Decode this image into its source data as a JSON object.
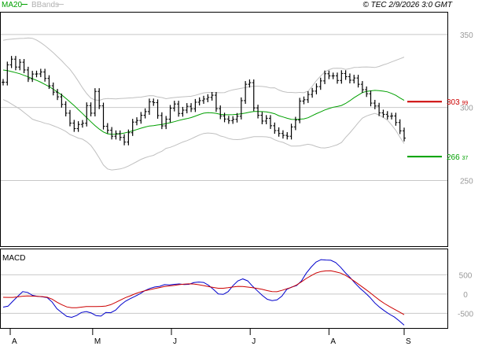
{
  "header": {
    "ma_legend": "MA20",
    "bb_legend": "BBands",
    "timestamp": "© TEC 2/9/2026 3:0 GMT"
  },
  "colors": {
    "background": "#ffffff",
    "price_bars": "#000000",
    "ma20": "#00a000",
    "bbands": "#c0c0c0",
    "macd_line": "#0000cc",
    "signal_line": "#cc0000",
    "resistance": "#cc0000",
    "support": "#00a000",
    "axis_text": "#999999"
  },
  "chart_data": [
    {
      "type": "ohlc",
      "title": "",
      "x_ticks": [
        "A",
        "M",
        "J",
        "J",
        "A",
        "S"
      ],
      "y_ticks": [
        250,
        300,
        350
      ],
      "ylim": [
        205,
        365
      ],
      "grid": true,
      "legend_placement": "top-left",
      "series": [
        {
          "name": "MA20",
          "values": [
            325.7,
            325.3,
            324.6,
            323.9,
            323.1,
            322.0,
            321.0,
            319.7,
            318.6,
            317.3,
            315.8,
            314.3,
            312.5,
            310.6,
            308.6,
            306.3,
            303.8,
            301.3,
            298.5,
            295.9,
            293.0,
            290.2,
            287.6,
            285.2,
            283.2,
            282.0,
            281.6,
            281.7,
            282.0,
            282.5,
            283.2,
            284.0,
            284.9,
            285.8,
            286.6,
            287.3,
            287.6,
            288.0,
            288.4,
            289.0,
            289.6,
            290.3,
            291.1,
            291.8,
            292.4,
            293.1,
            294.1,
            295.2,
            296.1,
            296.4,
            296.3,
            296.0,
            295.3,
            295.0,
            295.0,
            295.1,
            295.3,
            295.7,
            296.2,
            296.8,
            297.3,
            297.3,
            297.2,
            297.0,
            296.4,
            295.7,
            294.4,
            293.5,
            292.6,
            291.9,
            291.8,
            292.0,
            292.2,
            293.0,
            294.4,
            295.8,
            297.0,
            298.3,
            299.3,
            300.2,
            300.7,
            301.4,
            302.8,
            304.6,
            306.7,
            308.5,
            310.2,
            311.0,
            311.4,
            311.7,
            311.5,
            311.2,
            310.7,
            309.6,
            308.3,
            306.5,
            304.9
          ]
        },
        {
          "name": "BB upper",
          "values": [
            346.0,
            346.5,
            346.8,
            347.1,
            347.3,
            347.4,
            347.6,
            347.4,
            346.2,
            344.4,
            342.4,
            340.0,
            337.5,
            334.8,
            332.1,
            329.0,
            326.1,
            322.3,
            318.0,
            313.5,
            309.5,
            306.4,
            305.2,
            304.9,
            305.8,
            306.1,
            306.0,
            305.9,
            306.1,
            306.3,
            306.5,
            306.6,
            306.9,
            307.1,
            307.6,
            308.1,
            308.0,
            307.2,
            306.8,
            306.0,
            306.5,
            306.8,
            307.1,
            307.3,
            307.5,
            307.7,
            308.3,
            309.2,
            310.0,
            310.3,
            310.3,
            310.2,
            310.1,
            310.2,
            311.3,
            312.1,
            312.6,
            313.2,
            313.6,
            314.2,
            314.6,
            314.6,
            314.4,
            314.1,
            313.4,
            313.5,
            312.0,
            310.9,
            310.4,
            310.3,
            310.1,
            310.3,
            310.1,
            311.2,
            314.5,
            318.4,
            321.6,
            324.3,
            325.9,
            326.8,
            326.9,
            326.8,
            326.1,
            326.6,
            327.4,
            327.5,
            327.7,
            327.8,
            327.6,
            327.4,
            328.1,
            329.2,
            330.1,
            331.2,
            332.3,
            333.4,
            334.5
          ]
        },
        {
          "name": "BB lower",
          "values": [
            305.4,
            304.1,
            302.4,
            300.7,
            298.9,
            296.6,
            294.4,
            292.0,
            291.0,
            290.2,
            289.2,
            288.6,
            287.5,
            286.4,
            285.1,
            283.6,
            281.5,
            280.3,
            279.0,
            278.3,
            276.5,
            274.0,
            270.0,
            265.5,
            260.6,
            257.9,
            257.2,
            257.5,
            257.9,
            258.7,
            259.9,
            261.4,
            262.9,
            264.5,
            265.6,
            266.5,
            267.2,
            268.8,
            270.0,
            272.0,
            272.7,
            273.8,
            275.1,
            276.3,
            277.3,
            278.5,
            279.9,
            281.2,
            282.2,
            282.5,
            282.3,
            281.8,
            280.5,
            279.8,
            278.7,
            278.1,
            278.0,
            278.2,
            278.8,
            279.4,
            280.0,
            280.0,
            280.0,
            279.9,
            279.4,
            277.9,
            276.8,
            276.1,
            274.8,
            273.5,
            273.5,
            273.7,
            274.3,
            274.8,
            274.3,
            273.2,
            272.4,
            272.3,
            272.7,
            273.6,
            274.5,
            276.0,
            279.5,
            282.6,
            286.0,
            289.5,
            292.7,
            294.2,
            295.2,
            296.0,
            294.9,
            293.2,
            291.3,
            288.0,
            284.3,
            279.6,
            275.3
          ]
        },
        {
          "name": "Close",
          "values": [
            317.3,
            329.2,
            333.1,
            327.7,
            331.0,
            325.7,
            319.7,
            322.9,
            323.0,
            324.3,
            319.9,
            314.9,
            310.5,
            307.3,
            302.1,
            296.1,
            289.3,
            285.5,
            288.4,
            289.2,
            301.3,
            296.1,
            311.0,
            301.1,
            287.1,
            284.4,
            280.3,
            282.1,
            279.5,
            276.3,
            282.7,
            290.0,
            291.1,
            294.7,
            297.2,
            303.9,
            303.3,
            294.5,
            287.4,
            292.0,
            299.5,
            302.4,
            295.9,
            298.2,
            300.8,
            299.1,
            303.6,
            304.7,
            305.8,
            306.9,
            308.4,
            299.2,
            294.2,
            292.1,
            291.0,
            291.9,
            294.0,
            304.7,
            315.9,
            317.0,
            299.7,
            294.7,
            290.7,
            292.6,
            287.5,
            284.2,
            282.2,
            280.9,
            280.3,
            286.7,
            291.4,
            304.4,
            305.3,
            308.9,
            311.2,
            314.3,
            318.2,
            323.1,
            321.6,
            321.7,
            318.5,
            323.3,
            321.1,
            318.7,
            320.2,
            315.9,
            312.2,
            309.4,
            303.0,
            301.0,
            296.3,
            295.3,
            294.0,
            294.2,
            289.7,
            284.0,
            279.0
          ]
        }
      ],
      "annotations": [
        {
          "label": "303.99",
          "value": 303.99,
          "color": "#cc0000"
        },
        {
          "label": "266.37",
          "value": 266.37,
          "color": "#00a000"
        }
      ]
    },
    {
      "type": "line",
      "title": "MACD",
      "y_ticks": [
        500,
        0,
        -500
      ],
      "ylim": [
        -880,
        1160
      ],
      "grid": true,
      "series": [
        {
          "name": "MACD",
          "values": [
            -339,
            -314,
            -185,
            -56,
            62,
            43,
            -34,
            -57,
            -73,
            -93,
            -204,
            -380,
            -483,
            -581,
            -605,
            -557,
            -479,
            -454,
            -490,
            -560,
            -571,
            -476,
            -485,
            -417,
            -286,
            -187,
            -120,
            -57,
            9,
            91,
            147,
            183,
            200,
            244,
            238,
            253,
            262,
            249,
            253,
            298,
            312,
            301,
            228,
            121,
            2,
            -9,
            63,
            217,
            339,
            392,
            342,
            203,
            83,
            -35,
            -135,
            -170,
            -151,
            -54,
            121,
            180,
            221,
            340,
            543,
            701,
            829,
            892,
            883,
            876,
            818,
            696,
            548,
            421,
            276,
            149,
            37,
            -86,
            -232,
            -343,
            -437,
            -522,
            -597,
            -697,
            -806
          ]
        },
        {
          "name": "Signal",
          "values": [
            -84,
            -87,
            -86,
            -72,
            -56,
            -50,
            -53,
            -58,
            -67,
            -83,
            -131,
            -210,
            -276,
            -333,
            -356,
            -354,
            -339,
            -326,
            -326,
            -326,
            -322,
            -310,
            -277,
            -219,
            -153,
            -93,
            -45,
            7,
            52,
            87,
            114,
            142,
            168,
            197,
            212,
            224,
            244,
            258,
            265,
            261,
            242,
            219,
            193,
            170,
            151,
            151,
            164,
            183,
            200,
            197,
            180,
            164,
            145,
            121,
            90,
            64,
            61,
            95,
            136,
            177,
            235,
            318,
            405,
            479,
            546,
            584,
            602,
            605,
            577,
            543,
            484,
            405,
            318,
            226,
            134,
            39,
            -65,
            -161,
            -247,
            -323,
            -394,
            -462,
            -536
          ]
        }
      ]
    }
  ]
}
